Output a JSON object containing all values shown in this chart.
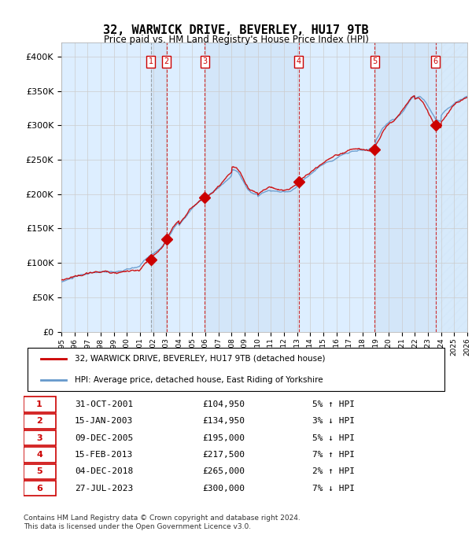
{
  "title": "32, WARWICK DRIVE, BEVERLEY, HU17 9TB",
  "subtitle": "Price paid vs. HM Land Registry's House Price Index (HPI)",
  "legend_line1": "32, WARWICK DRIVE, BEVERLEY, HU17 9TB (detached house)",
  "legend_line2": "HPI: Average price, detached house, East Riding of Yorkshire",
  "footer1": "Contains HM Land Registry data © Crown copyright and database right 2024.",
  "footer2": "This data is licensed under the Open Government Licence v3.0.",
  "sales": [
    {
      "num": 1,
      "date_label": "31-OCT-2001",
      "date_x": 2001.83,
      "price": 104950,
      "pct": "5%",
      "dir": "↑",
      "hpi_rel": "HPI"
    },
    {
      "num": 2,
      "date_label": "15-JAN-2003",
      "date_x": 2003.04,
      "price": 134950,
      "pct": "3%",
      "dir": "↓",
      "hpi_rel": "HPI"
    },
    {
      "num": 3,
      "date_label": "09-DEC-2005",
      "date_x": 2005.94,
      "price": 195000,
      "pct": "5%",
      "dir": "↓",
      "hpi_rel": "HPI"
    },
    {
      "num": 4,
      "date_label": "15-FEB-2013",
      "date_x": 2013.12,
      "price": 217500,
      "pct": "7%",
      "dir": "↑",
      "hpi_rel": "HPI"
    },
    {
      "num": 5,
      "date_label": "04-DEC-2018",
      "date_x": 2018.92,
      "price": 265000,
      "pct": "2%",
      "dir": "↑",
      "hpi_rel": "HPI"
    },
    {
      "num": 6,
      "date_label": "27-JUL-2023",
      "date_x": 2023.57,
      "price": 300000,
      "pct": "7%",
      "dir": "↓",
      "hpi_rel": "HPI"
    }
  ],
  "xmin": 1995.0,
  "xmax": 2026.0,
  "ymin": 0,
  "ymax": 420000,
  "yticks": [
    0,
    50000,
    100000,
    150000,
    200000,
    250000,
    300000,
    350000,
    400000
  ],
  "hpi_color": "#6699cc",
  "price_color": "#cc0000",
  "bg_color": "#ddeeff",
  "plot_bg": "#ffffff",
  "grid_color": "#cccccc"
}
